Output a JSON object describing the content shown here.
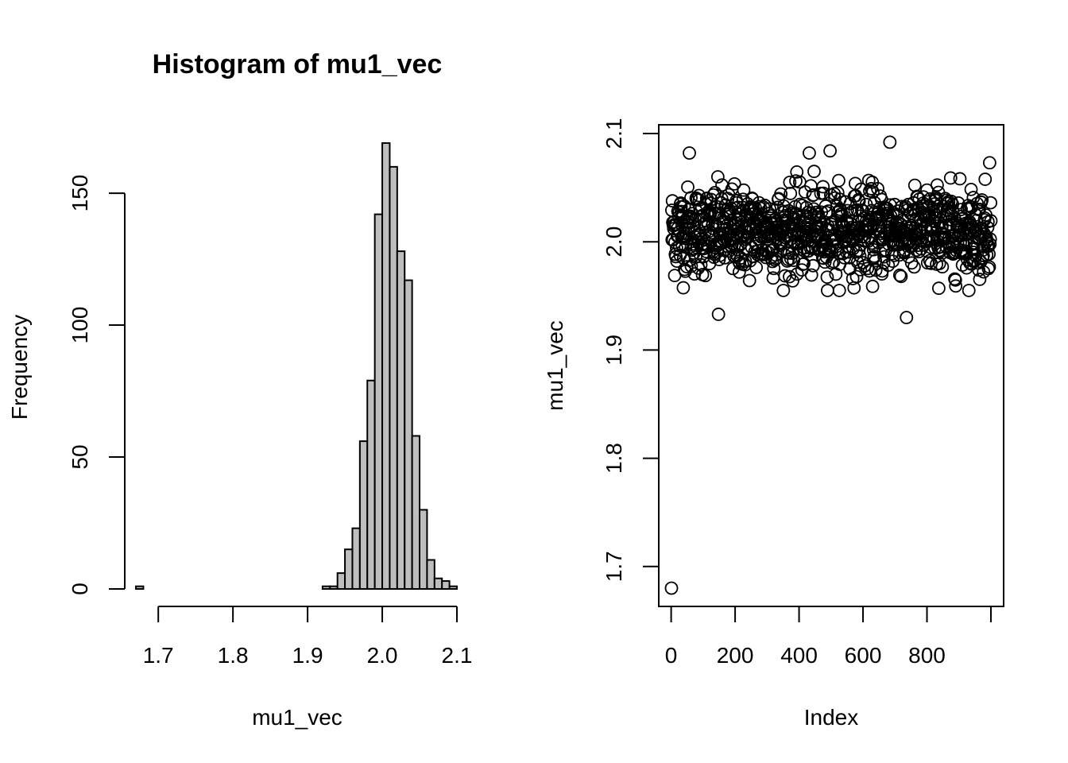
{
  "chart_data": [
    {
      "type": "bar",
      "title": "Histogram of mu1_vec",
      "xlabel": "mu1_vec",
      "ylabel": "Frequency",
      "bin_width": 0.01,
      "bin_starts": [
        1.67,
        1.68,
        1.69,
        1.7,
        1.71,
        1.72,
        1.73,
        1.74,
        1.75,
        1.76,
        1.77,
        1.78,
        1.79,
        1.8,
        1.81,
        1.82,
        1.83,
        1.84,
        1.85,
        1.86,
        1.87,
        1.88,
        1.89,
        1.9,
        1.91,
        1.92,
        1.93,
        1.94,
        1.95,
        1.96,
        1.97,
        1.98,
        1.99,
        2.0,
        2.01,
        2.02,
        2.03,
        2.04,
        2.05,
        2.06,
        2.07,
        2.08,
        2.09
      ],
      "values": [
        1,
        0,
        0,
        0,
        0,
        0,
        0,
        0,
        0,
        0,
        0,
        0,
        0,
        0,
        0,
        0,
        0,
        0,
        0,
        0,
        0,
        0,
        0,
        0,
        0,
        1,
        1,
        6,
        15,
        23,
        56,
        79,
        142,
        169,
        160,
        128,
        117,
        58,
        30,
        11,
        4,
        3,
        1
      ],
      "xlim": [
        1.67,
        2.1
      ],
      "ylim": [
        0,
        169
      ],
      "xticks": [
        "1.7",
        "1.8",
        "1.9",
        "2.0",
        "2.1"
      ],
      "yticks": [
        "0",
        "50",
        "100",
        "150"
      ],
      "grid": false
    },
    {
      "type": "scatter",
      "xlabel": "Index",
      "ylabel": "mu1_vec",
      "n_points": 1000,
      "series_summary": {
        "first_value": 1.68,
        "center": 2.01,
        "spread_sd": 0.02,
        "range": [
          1.68,
          2.092
        ]
      },
      "outliers": [
        {
          "x": 1,
          "y": 1.68
        },
        {
          "x": 57,
          "y": 2.082
        },
        {
          "x": 148,
          "y": 1.933
        },
        {
          "x": 432,
          "y": 2.082
        },
        {
          "x": 497,
          "y": 2.084
        },
        {
          "x": 684,
          "y": 2.092
        },
        {
          "x": 736,
          "y": 1.93
        },
        {
          "x": 996,
          "y": 2.073
        }
      ],
      "xlim": [
        1,
        1000
      ],
      "ylim": [
        1.68,
        2.1
      ],
      "xticks": [
        "0",
        "200",
        "400",
        "600",
        "800"
      ],
      "yticks": [
        "1.7",
        "1.8",
        "1.9",
        "2.0",
        "2.1"
      ],
      "grid": false
    }
  ]
}
